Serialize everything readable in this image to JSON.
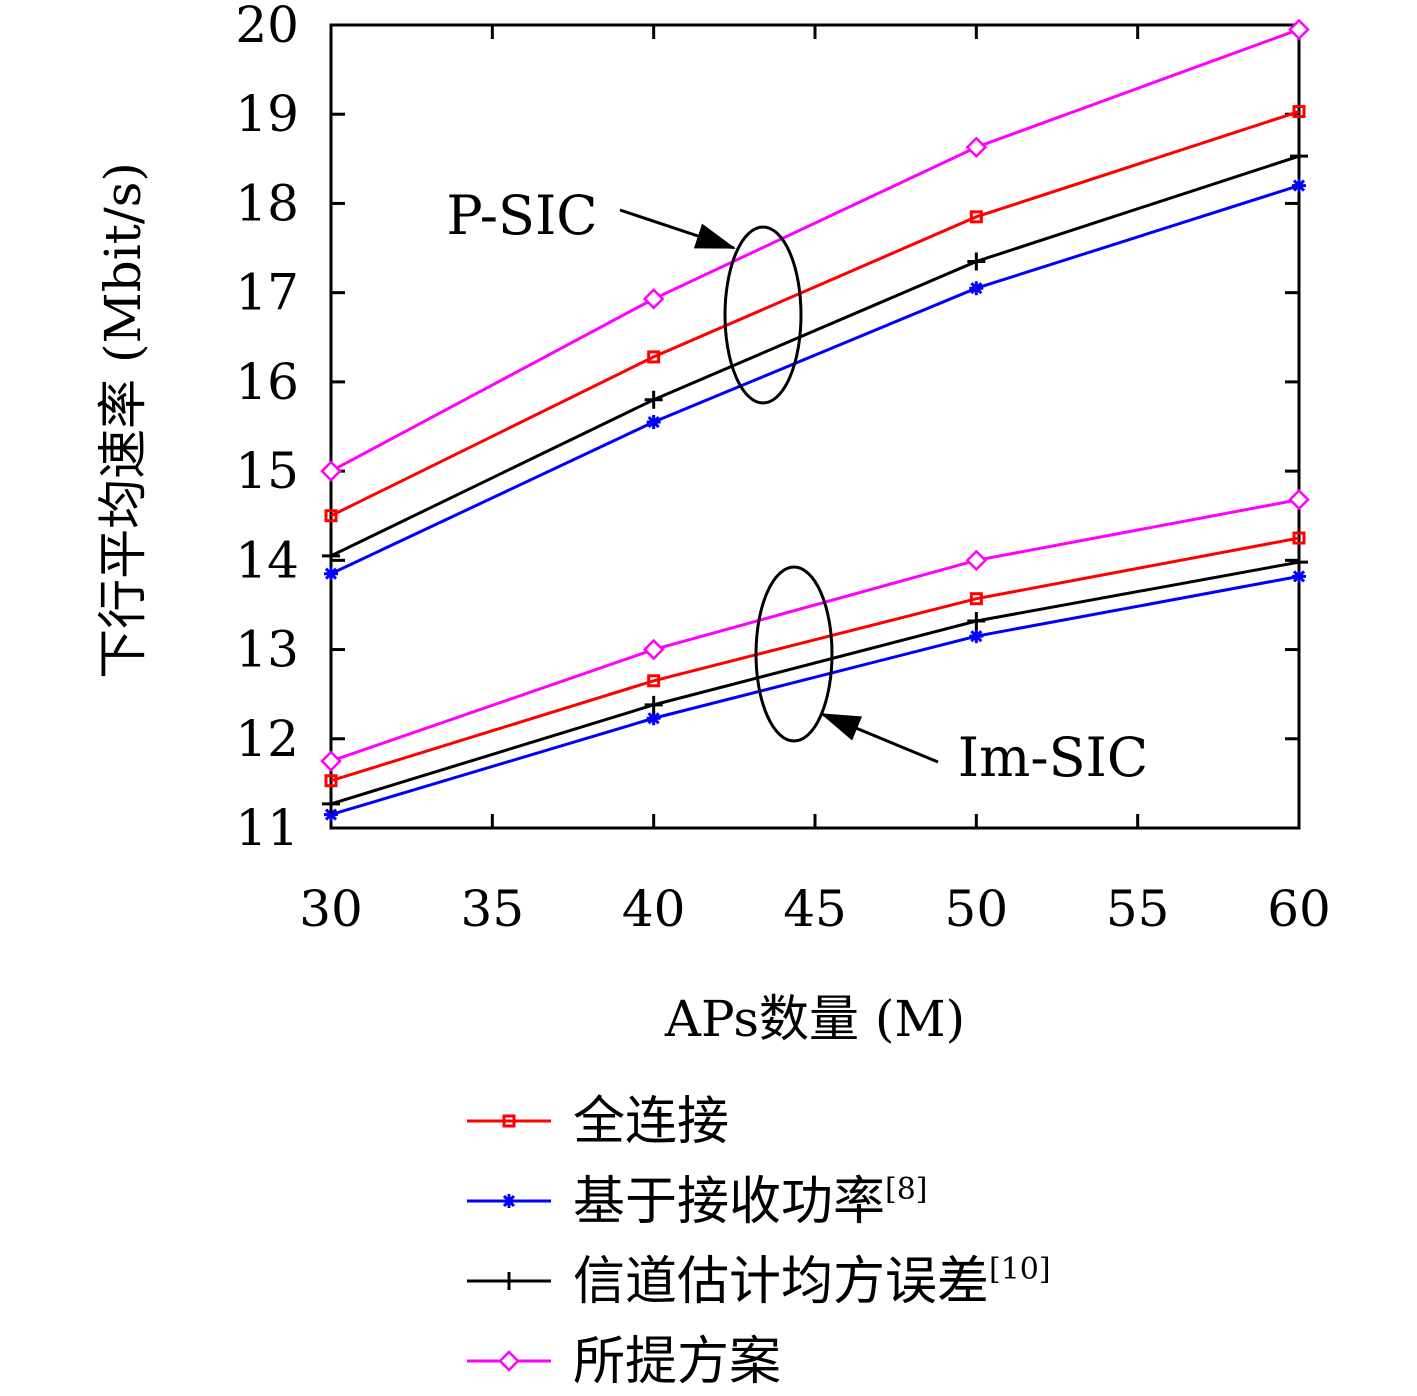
{
  "chart_data": {
    "type": "line",
    "title": "",
    "xlabel": "APs数量 (M)",
    "ylabel": "下行平均速率 (Mbit/s)",
    "xlim": [
      30,
      60
    ],
    "ylim": [
      11,
      20
    ],
    "xticks": [
      30,
      35,
      40,
      45,
      50,
      55,
      60
    ],
    "yticks": [
      11,
      12,
      13,
      14,
      15,
      16,
      17,
      18,
      19,
      20
    ],
    "x": [
      30,
      40,
      50,
      60
    ],
    "grid": false,
    "legend_position": "bottom",
    "series": [
      {
        "name": "全连接",
        "ref": "",
        "color": "#ff0000",
        "marker": "square",
        "group": "P-SIC",
        "values": [
          14.5,
          16.28,
          17.85,
          19.03
        ]
      },
      {
        "name": "基于接收功率",
        "ref": "[8]",
        "color": "#0000ff",
        "marker": "asterisk",
        "group": "P-SIC",
        "values": [
          13.85,
          15.55,
          17.05,
          18.2
        ]
      },
      {
        "name": "信道估计均方误差",
        "ref": "[10]",
        "color": "#000000",
        "marker": "plus",
        "group": "P-SIC",
        "values": [
          14.05,
          15.8,
          17.35,
          18.53
        ]
      },
      {
        "name": "所提方案",
        "ref": "",
        "color": "#ff00ff",
        "marker": "diamond",
        "group": "P-SIC",
        "values": [
          15.0,
          16.93,
          18.63,
          19.95
        ]
      },
      {
        "name": "全连接",
        "ref": "",
        "color": "#ff0000",
        "marker": "square",
        "group": "Im-SIC",
        "values": [
          11.53,
          12.65,
          13.57,
          14.25
        ]
      },
      {
        "name": "基于接收功率",
        "ref": "[8]",
        "color": "#0000ff",
        "marker": "asterisk",
        "group": "Im-SIC",
        "values": [
          11.15,
          12.23,
          13.15,
          13.82
        ]
      },
      {
        "name": "信道估计均方误差",
        "ref": "[10]",
        "color": "#000000",
        "marker": "plus",
        "group": "Im-SIC",
        "values": [
          11.27,
          12.38,
          13.32,
          13.98
        ]
      },
      {
        "name": "所提方案",
        "ref": "",
        "color": "#ff00ff",
        "marker": "diamond",
        "group": "Im-SIC",
        "values": [
          11.75,
          13.0,
          14.0,
          14.68
        ]
      }
    ],
    "legend": [
      {
        "label": "全连接",
        "ref": "",
        "color": "#ff0000",
        "marker": "square"
      },
      {
        "label": "基于接收功率",
        "ref": "[8]",
        "color": "#0000ff",
        "marker": "asterisk"
      },
      {
        "label": "信道估计均方误差",
        "ref": "[10]",
        "color": "#000000",
        "marker": "plus"
      },
      {
        "label": "所提方案",
        "ref": "",
        "color": "#ff00ff",
        "marker": "diamond"
      }
    ],
    "annotations": [
      {
        "text": "P-SIC",
        "ellipse_center": [
          44.8,
          16.75
        ]
      },
      {
        "text": "Im-SIC",
        "ellipse_center": [
          45.0,
          12.95
        ]
      }
    ]
  }
}
